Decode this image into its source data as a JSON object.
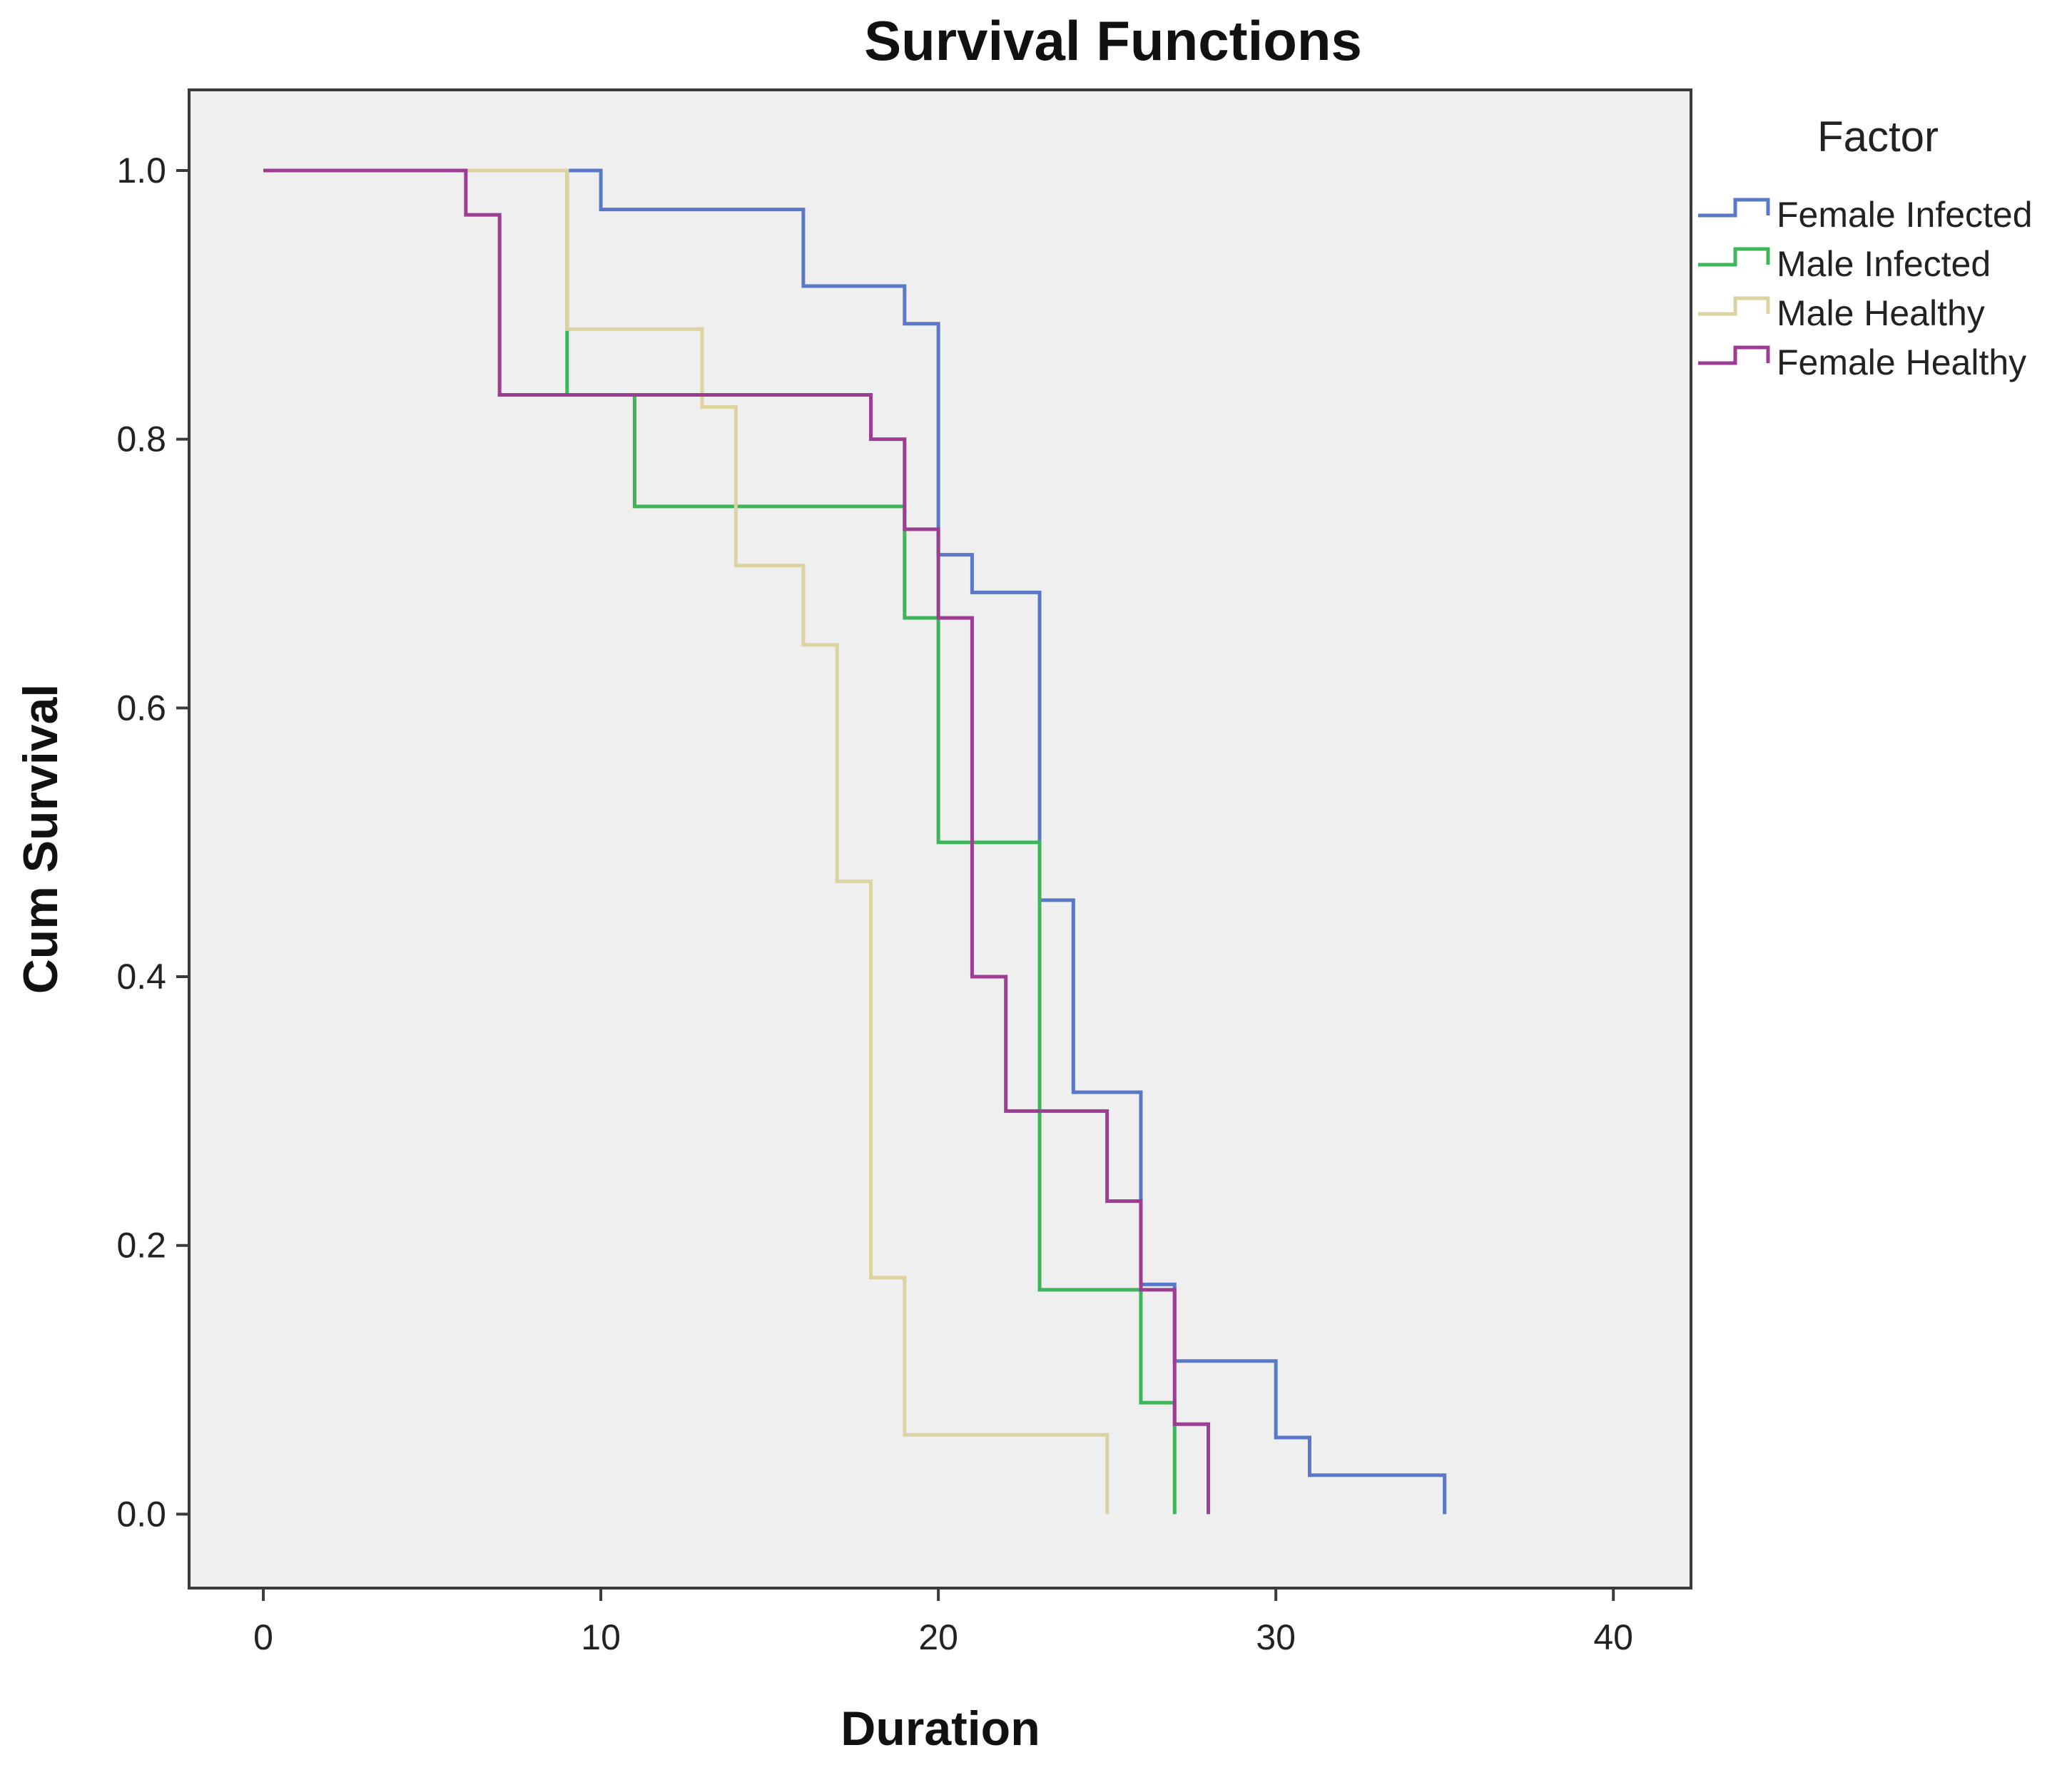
{
  "chart_data": {
    "type": "line",
    "subtype": "step",
    "title": "Survival Functions",
    "xlabel": "Duration",
    "ylabel": "Cum Survival",
    "xlim": [
      -2.2,
      42.3
    ],
    "ylim": [
      -0.055,
      1.06
    ],
    "xticks": [
      0,
      10,
      20,
      30,
      40
    ],
    "xtick_labels": [
      "0",
      "10",
      "20",
      "30",
      "40"
    ],
    "yticks": [
      0.0,
      0.2,
      0.4,
      0.6,
      0.8,
      1.0
    ],
    "ytick_labels": [
      "0.0",
      "0.2",
      "0.4",
      "0.6",
      "0.8",
      "1.0"
    ],
    "grid": false,
    "legend_title": "Factor",
    "legend_position": "right",
    "series": [
      {
        "name": "Female Infected",
        "color": "#5a78c8",
        "x": [
          0,
          10,
          16,
          19,
          20,
          21,
          23,
          24,
          26,
          27,
          30,
          31,
          35
        ],
        "y": [
          1.0,
          0.971,
          0.914,
          0.886,
          0.714,
          0.686,
          0.457,
          0.314,
          0.171,
          0.114,
          0.057,
          0.029,
          0.0
        ]
      },
      {
        "name": "Male Infected",
        "color": "#3fb55a",
        "x": [
          0,
          9,
          11,
          19,
          20,
          23,
          26,
          27
        ],
        "y": [
          1.0,
          0.833,
          0.75,
          0.667,
          0.5,
          0.167,
          0.083,
          0.0
        ]
      },
      {
        "name": "Male Healthy",
        "color": "#dcd3a0",
        "x": [
          0,
          9,
          13,
          14,
          16,
          17,
          18,
          19,
          25
        ],
        "y": [
          1.0,
          0.882,
          0.824,
          0.706,
          0.647,
          0.471,
          0.176,
          0.059,
          0.0
        ]
      },
      {
        "name": "Female Healthy",
        "color": "#9c3d93",
        "x": [
          0,
          6,
          7,
          18,
          19,
          20,
          21,
          22,
          25,
          26,
          27,
          28
        ],
        "y": [
          1.0,
          0.967,
          0.833,
          0.8,
          0.733,
          0.667,
          0.4,
          0.3,
          0.233,
          0.167,
          0.067,
          0.0
        ]
      }
    ]
  }
}
